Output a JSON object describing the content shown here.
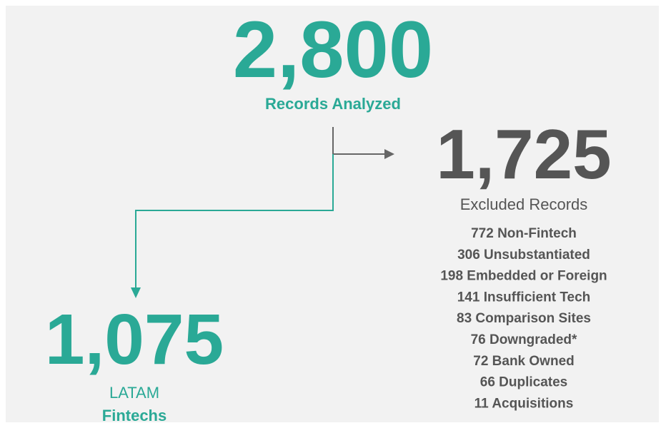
{
  "total": {
    "value": "2,800",
    "label": "Records Analyzed"
  },
  "excluded": {
    "value": "1,725",
    "label": "Excluded Records",
    "reasons": [
      "772 Non-Fintech",
      "306 Unsubstantiated",
      "198 Embedded or Foreign",
      "141 Insufficient Tech",
      "83 Comparison Sites",
      "76 Downgraded*",
      "72 Bank Owned",
      "66 Duplicates",
      "11 Acquisitions"
    ]
  },
  "included": {
    "value": "1,075",
    "label_line1": "LATAM",
    "label_line2": "Fintechs"
  }
}
